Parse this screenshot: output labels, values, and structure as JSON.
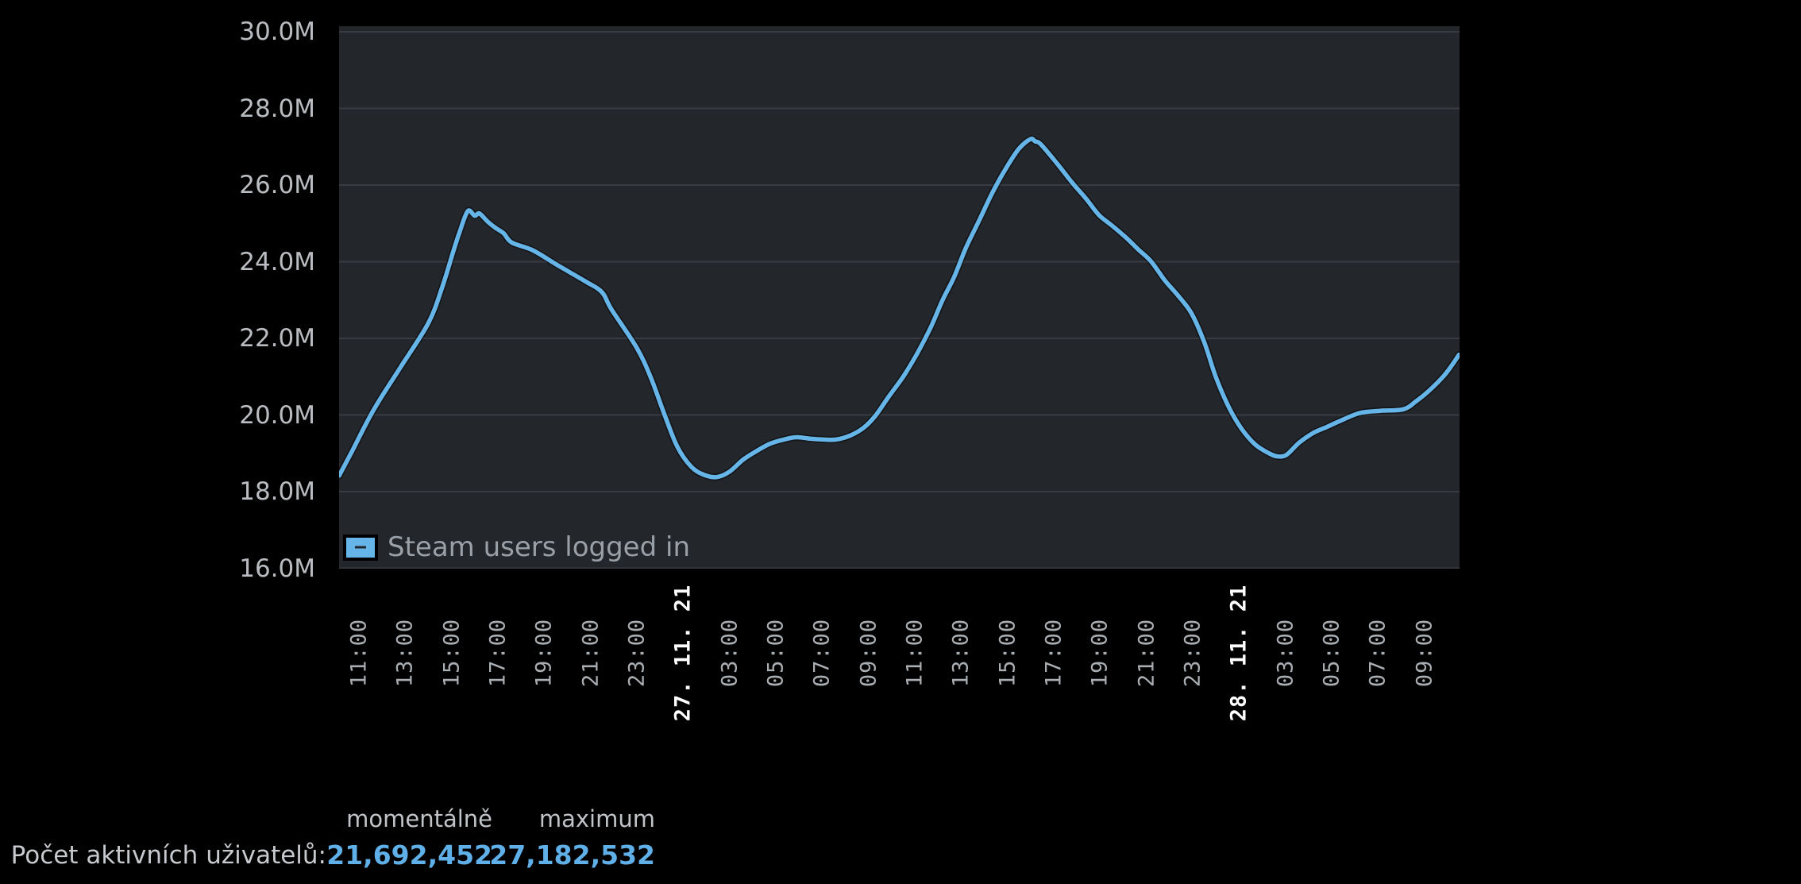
{
  "colors": {
    "background": "#000000",
    "plot_background": "#23262b",
    "grid": "#383c42",
    "line": "#66b5e8",
    "y_axis_text": "#b9bdc2",
    "x_time_text": "#a9aeb3",
    "x_date_text": "#ffffff",
    "legend_text": "#9aa0a8",
    "stat_number": "#5fafe8",
    "stat_text": "#c6c9cd"
  },
  "chart_data": {
    "type": "line",
    "grid": true,
    "legend": {
      "label": "Steam users logged in",
      "position": "inside-bottom-left"
    },
    "y": {
      "min": 16000000,
      "max": 30000000,
      "tick_step": 2000000,
      "tick_labels": [
        "30.0M",
        "28.0M",
        "26.0M",
        "24.0M",
        "22.0M",
        "20.0M",
        "18.0M",
        "16.0M"
      ]
    },
    "x": {
      "tick_step_hours": 2,
      "range_hours": [
        -0.85,
        47.5
      ],
      "tick_labels": [
        "11:00",
        "13:00",
        "15:00",
        "17:00",
        "19:00",
        "21:00",
        "23:00",
        "27. 11. 21",
        "03:00",
        "05:00",
        "07:00",
        "09:00",
        "11:00",
        "13:00",
        "15:00",
        "17:00",
        "19:00",
        "21:00",
        "23:00",
        "28. 11. 21",
        "03:00",
        "05:00",
        "07:00",
        "09:00"
      ],
      "date_label_indices": [
        7,
        19
      ]
    },
    "series": [
      {
        "name": "Steam users logged in",
        "color": "#66b5e8",
        "points_unit": "[hours after first tick 11:00, users in millions]",
        "points": [
          [
            -0.85,
            18.42
          ],
          [
            -0.3,
            19.05
          ],
          [
            0.65,
            20.15
          ],
          [
            1.8,
            21.25
          ],
          [
            3.0,
            22.4
          ],
          [
            3.6,
            23.34
          ],
          [
            4.1,
            24.32
          ],
          [
            4.35,
            24.78
          ],
          [
            4.7,
            25.32
          ],
          [
            5.0,
            25.2
          ],
          [
            5.2,
            25.26
          ],
          [
            5.55,
            25.05
          ],
          [
            5.9,
            24.88
          ],
          [
            6.25,
            24.74
          ],
          [
            6.6,
            24.5
          ],
          [
            7.5,
            24.3
          ],
          [
            8.6,
            23.9
          ],
          [
            9.8,
            23.48
          ],
          [
            10.5,
            23.2
          ],
          [
            10.9,
            22.76
          ],
          [
            12.0,
            21.75
          ],
          [
            12.6,
            20.98
          ],
          [
            13.2,
            20.0
          ],
          [
            13.75,
            19.17
          ],
          [
            14.35,
            18.65
          ],
          [
            14.9,
            18.44
          ],
          [
            15.45,
            18.38
          ],
          [
            16.0,
            18.52
          ],
          [
            16.6,
            18.84
          ],
          [
            17.2,
            19.07
          ],
          [
            17.75,
            19.25
          ],
          [
            18.35,
            19.36
          ],
          [
            18.9,
            19.42
          ],
          [
            19.5,
            19.38
          ],
          [
            20.05,
            19.36
          ],
          [
            20.6,
            19.36
          ],
          [
            21.2,
            19.46
          ],
          [
            21.8,
            19.67
          ],
          [
            22.3,
            19.98
          ],
          [
            22.9,
            20.5
          ],
          [
            23.5,
            21.0
          ],
          [
            24.1,
            21.6
          ],
          [
            24.7,
            22.3
          ],
          [
            25.2,
            23.0
          ],
          [
            25.7,
            23.6
          ],
          [
            26.2,
            24.35
          ],
          [
            26.8,
            25.1
          ],
          [
            27.35,
            25.8
          ],
          [
            27.95,
            26.45
          ],
          [
            28.5,
            26.95
          ],
          [
            29.0,
            27.2
          ],
          [
            29.2,
            27.14
          ],
          [
            29.45,
            27.06
          ],
          [
            30.2,
            26.52
          ],
          [
            30.8,
            26.06
          ],
          [
            31.4,
            25.64
          ],
          [
            31.95,
            25.22
          ],
          [
            32.5,
            24.95
          ],
          [
            33.1,
            24.64
          ],
          [
            33.65,
            24.32
          ],
          [
            34.2,
            24.01
          ],
          [
            34.8,
            23.51
          ],
          [
            35.35,
            23.13
          ],
          [
            35.95,
            22.65
          ],
          [
            36.5,
            21.9
          ],
          [
            37.0,
            20.99
          ],
          [
            37.55,
            20.22
          ],
          [
            38.1,
            19.65
          ],
          [
            38.7,
            19.23
          ],
          [
            39.3,
            19.0
          ],
          [
            39.65,
            18.92
          ],
          [
            40.05,
            18.96
          ],
          [
            40.6,
            19.28
          ],
          [
            41.2,
            19.53
          ],
          [
            41.8,
            19.69
          ],
          [
            42.35,
            19.84
          ],
          [
            43.2,
            20.05
          ],
          [
            44.1,
            20.11
          ],
          [
            45.1,
            20.15
          ],
          [
            45.65,
            20.36
          ],
          [
            46.2,
            20.63
          ],
          [
            46.8,
            20.99
          ],
          [
            47.15,
            21.26
          ],
          [
            47.5,
            21.57
          ]
        ]
      }
    ]
  },
  "stats": {
    "header_current": "momentálně",
    "header_maximum": "maximum",
    "row_label": "Počet aktivních uživatelů:",
    "current_value": "21,692,452",
    "maximum_value": "27,182,532"
  }
}
